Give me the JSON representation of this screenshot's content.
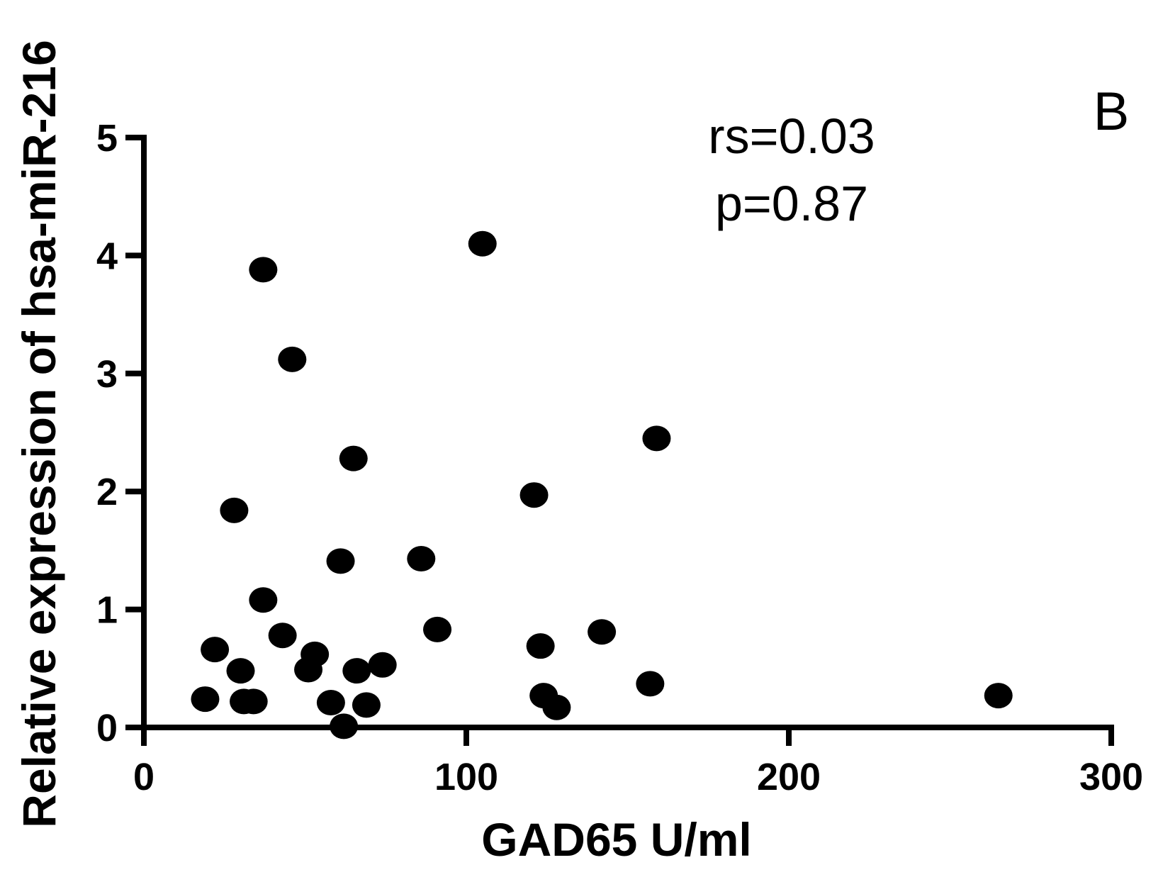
{
  "chart_data": {
    "type": "scatter",
    "xlabel": "GAD65 U/ml",
    "ylabel": "Relative expression of hsa-miR-216",
    "xlim": [
      0,
      300
    ],
    "ylim": [
      0,
      5
    ],
    "xticks": [
      0,
      100,
      200,
      300
    ],
    "yticks": [
      0,
      1,
      2,
      3,
      4,
      5
    ],
    "grid": false,
    "panel_label": "B",
    "annotations": [
      "rs=0.03",
      "p=0.87"
    ],
    "marker_color": "#000000",
    "points": [
      {
        "x": 37,
        "y": 3.88
      },
      {
        "x": 105,
        "y": 4.1
      },
      {
        "x": 46,
        "y": 3.12
      },
      {
        "x": 65,
        "y": 2.28
      },
      {
        "x": 159,
        "y": 2.45
      },
      {
        "x": 121,
        "y": 1.97
      },
      {
        "x": 28,
        "y": 1.84
      },
      {
        "x": 61,
        "y": 1.41
      },
      {
        "x": 86,
        "y": 1.43
      },
      {
        "x": 37,
        "y": 1.08
      },
      {
        "x": 91,
        "y": 0.83
      },
      {
        "x": 142,
        "y": 0.81
      },
      {
        "x": 43,
        "y": 0.78
      },
      {
        "x": 22,
        "y": 0.66
      },
      {
        "x": 123,
        "y": 0.69
      },
      {
        "x": 53,
        "y": 0.62
      },
      {
        "x": 74,
        "y": 0.53
      },
      {
        "x": 30,
        "y": 0.48
      },
      {
        "x": 51,
        "y": 0.49
      },
      {
        "x": 66,
        "y": 0.48
      },
      {
        "x": 157,
        "y": 0.37
      },
      {
        "x": 265,
        "y": 0.27
      },
      {
        "x": 124,
        "y": 0.27
      },
      {
        "x": 19,
        "y": 0.24
      },
      {
        "x": 31,
        "y": 0.22
      },
      {
        "x": 34,
        "y": 0.22
      },
      {
        "x": 58,
        "y": 0.21
      },
      {
        "x": 69,
        "y": 0.19
      },
      {
        "x": 128,
        "y": 0.17
      },
      {
        "x": 62,
        "y": 0.01
      }
    ]
  }
}
